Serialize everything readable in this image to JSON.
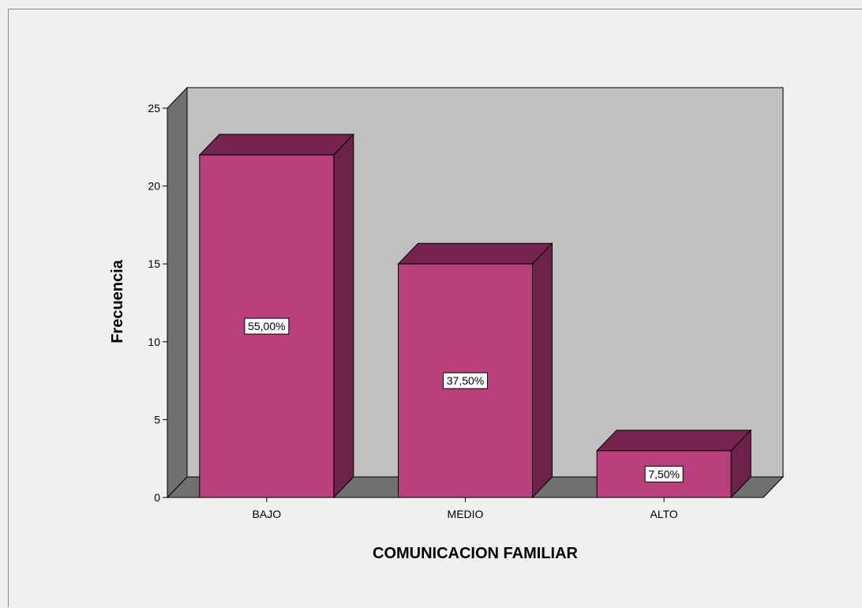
{
  "chart_data": {
    "type": "bar",
    "title": "",
    "xlabel": "COMUNICACION FAMILIAR",
    "ylabel": "Frecuencia",
    "categories": [
      "BAJO",
      "MEDIO",
      "ALTO"
    ],
    "values": [
      22,
      15,
      3
    ],
    "data_labels": [
      "55,00%",
      "37,50%",
      "7,50%"
    ],
    "ylim": [
      0,
      25
    ],
    "yticks": [
      0,
      5,
      10,
      15,
      20,
      25
    ],
    "grid": false,
    "style": "3d",
    "colors": {
      "bar_front": "#bc3f7d",
      "bar_side": "#6c2249",
      "bar_top": "#75244e",
      "back_wall": "#c0c0c0",
      "side_wall": "#707070",
      "floor": "#707070"
    }
  }
}
